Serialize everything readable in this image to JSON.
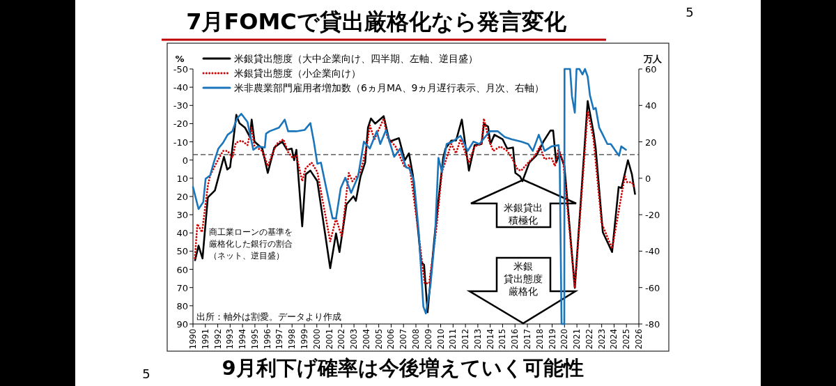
{
  "chart_data": {
    "type": "line",
    "title": "7月FOMCで貸出厳格化なら発言変化",
    "subtitle": "9月利下げ確率は今後増えていく可能性",
    "ylabel": "%",
    "y2label": "万人",
    "xlim": [
      1990,
      2026
    ],
    "xticks": [
      1990,
      1991,
      1992,
      1993,
      1994,
      1995,
      1996,
      1997,
      1998,
      1999,
      2000,
      2001,
      2002,
      2003,
      2004,
      2005,
      2006,
      2007,
      2008,
      2009,
      2010,
      2011,
      2012,
      2013,
      2014,
      2015,
      2016,
      2017,
      2018,
      2019,
      2020,
      2021,
      2022,
      2023,
      2024,
      2025,
      2026
    ],
    "ylim": [
      90,
      -50
    ],
    "yticks": [
      -50,
      -40,
      -30,
      -20,
      -10,
      0,
      10,
      20,
      30,
      40,
      50,
      60,
      70,
      80,
      90
    ],
    "y2lim": [
      -80,
      60
    ],
    "y2ticks": [
      -80,
      -60,
      -40,
      -20,
      0,
      20,
      40,
      60
    ],
    "legend": "top left",
    "series": [
      {
        "name": "米銀貸出態度（大中企業向け、四半期、左軸、逆目盛）",
        "color": "#000000",
        "line_style": "solid",
        "x": [
          1990.17,
          1990.45,
          1990.77,
          1991.2,
          1991.77,
          1992.5,
          1992.77,
          1993.0,
          1993.5,
          1993.75,
          1994.2,
          1994.6,
          1994.74,
          1994.97,
          1995.6,
          1996.04,
          1996.57,
          1997.2,
          1997.6,
          1997.97,
          1998.17,
          1998.35,
          1998.82,
          1999.1,
          1999.48,
          2000.04,
          2001.08,
          2001.55,
          2001.83,
          2002.4,
          2002.96,
          2003.15,
          2003.53,
          2003.9,
          2004.13,
          2004.37,
          2004.71,
          2005.4,
          2005.87,
          2006.63,
          2007.1,
          2007.44,
          2007.76,
          2008.42,
          2008.66,
          2008.94,
          2009.54,
          2010.2,
          2010.39,
          2010.86,
          2011.24,
          2011.71,
          2012.28,
          2012.74,
          2013.3,
          2013.49,
          2013.83,
          2014.02,
          2014.34,
          2015.0,
          2015.37,
          2015.84,
          2016.03,
          2016.41,
          2016.6,
          2017.16,
          2017.73,
          2018.29,
          2018.86,
          2019.08,
          2019.33,
          2019.61,
          2019.99,
          2020.83,
          2021.87,
          2022.34,
          2022.52,
          2023.09,
          2023.84,
          2024.37,
          2024.6,
          2025.12,
          2025.44,
          2025.69
        ],
        "values": [
          55,
          47,
          54,
          20.5,
          16.7,
          -1.8,
          5.2,
          3.9,
          -24.8,
          -20.3,
          -17.8,
          -12.6,
          -22.2,
          -10.1,
          -6.3,
          7.1,
          -6.9,
          -10.1,
          -5.6,
          -6.3,
          0.1,
          -5.6,
          36.4,
          7.8,
          5.8,
          11.6,
          59.4,
          40.3,
          50.5,
          24.3,
          19.9,
          22.4,
          9,
          1.4,
          -17.8,
          -22.8,
          -20,
          -24.1,
          -10.1,
          -12,
          0.1,
          -3.7,
          8.4,
          56.2,
          57.5,
          83.6,
          39.6,
          -1.2,
          -6.3,
          -10.7,
          -10.7,
          -22.2,
          5.8,
          -8.2,
          -8.8,
          -19.7,
          -18.4,
          -8.8,
          -13.9,
          -11.4,
          -6.3,
          -6.9,
          7.1,
          9,
          11.6,
          1.4,
          -2.5,
          -10.1,
          -16.2,
          -16.2,
          1.4,
          -3.7,
          3.3,
          70.2,
          -32.4,
          -15.2,
          -6.3,
          39.6,
          50.5,
          14.8,
          15.4,
          0.1,
          7.8,
          18.6
        ]
      },
      {
        "name": "米銀貸出態度（小企業向け）",
        "color": "#d00000",
        "line_style": "dotted",
        "x": [
          1990.15,
          1990.36,
          1990.73,
          1991.2,
          1991.39,
          1991.95,
          1992.43,
          1992.8,
          1993.18,
          1993.46,
          1993.93,
          1994.4,
          1994.72,
          1994.97,
          1995.6,
          1996.04,
          1996.74,
          1997.3,
          1997.68,
          1998.05,
          1998.35,
          1998.82,
          1999.1,
          1999.57,
          2000.04,
          2001.08,
          2001.55,
          2002.02,
          2002.4,
          2002.58,
          2002.87,
          2003.53,
          2004.0,
          2004.28,
          2004.65,
          2005.4,
          2005.69,
          2006.35,
          2007.1,
          2007.47,
          2008.23,
          2008.7,
          2009.07,
          2009.64,
          2010.1,
          2010.86,
          2011.24,
          2011.6,
          2012.28,
          2012.74,
          2013.3,
          2013.49,
          2013.87,
          2014.25,
          2014.81,
          2015.37,
          2015.75,
          2016.22,
          2016.5,
          2017.07,
          2017.63,
          2018.01,
          2018.39,
          2018.95,
          2019.23,
          2019.52,
          2019.9,
          2020.83,
          2021.87,
          2022.34,
          2022.99,
          2023.84,
          2024.6,
          2024.88,
          2025.06,
          2025.44,
          2025.63
        ],
        "values": [
          53.8,
          35.1,
          39.6,
          14.1,
          8.4,
          0.8,
          -5,
          -5,
          -1.2,
          -9.5,
          -10.7,
          -8.2,
          -17.8,
          -7.5,
          -5,
          3.3,
          -8.8,
          -11.4,
          -4.4,
          -1.2,
          -2.5,
          11.6,
          4.5,
          1.4,
          6.5,
          44.7,
          32,
          42.2,
          18,
          7.1,
          11.6,
          6.5,
          -6.3,
          -19,
          -11.4,
          -22.8,
          -12.6,
          -7.5,
          4,
          2.6,
          40.9,
          67.7,
          67.7,
          38.4,
          6.5,
          -8.8,
          -3.7,
          -11.4,
          1.4,
          -7.5,
          -8.8,
          -22.8,
          -11.4,
          -5,
          -7.5,
          -5,
          -1.2,
          5.2,
          5.8,
          1.4,
          -2.5,
          -7.5,
          -0.5,
          -1.2,
          3.3,
          -6.3,
          1.4,
          70.2,
          -26.7,
          -11.4,
          34.5,
          48.6,
          19.2,
          9,
          12.2,
          12.2,
          14.8
        ]
      },
      {
        "name": "米非農業部門雇用者増加数（6ヵ月MA、9ヵ月遅行表示、月次、右軸）",
        "color": "#1b75bb",
        "line_style": "solid",
        "axis": "y2",
        "x": [
          1990.0,
          1990.45,
          1990.83,
          1991.02,
          1991.39,
          1991.68,
          1992.05,
          1992.43,
          1992.8,
          1993.18,
          1993.55,
          1993.9,
          1994.4,
          1994.87,
          1995.25,
          1995.8,
          1995.9,
          1996.18,
          1996.94,
          1997.41,
          1997.68,
          1998.35,
          1999.01,
          1999.48,
          1999.76,
          2000.04,
          2000.33,
          2000.8,
          2001.27,
          2001.55,
          2001.93,
          2002.3,
          2002.77,
          2003.33,
          2003.8,
          2004.28,
          2004.84,
          2005.12,
          2005.59,
          2005.87,
          2006.25,
          2006.72,
          2007.19,
          2007.47,
          2007.85,
          2008.23,
          2008.6,
          2008.8,
          2009.17,
          2009.54,
          2009.82,
          2010.1,
          2010.48,
          2010.95,
          2011.6,
          2012.18,
          2012.64,
          2013.12,
          2013.58,
          2013.96,
          2014.62,
          2015.18,
          2015.75,
          2016.5,
          2017.07,
          2017.44,
          2017.92,
          2018.39,
          2018.95,
          2019.52,
          2019.61,
          2019.76,
          2019.98,
          2020.0,
          2020.45,
          2020.6,
          2020.83,
          2020.97,
          2021.2,
          2021.45,
          2021.65,
          2021.87,
          2022.05,
          2022.34,
          2022.52,
          2022.8,
          2023.09,
          2023.46,
          2023.74,
          2024.12,
          2024.4,
          2024.58,
          2024.96
        ],
        "values": [
          -4.8,
          -16.9,
          -13.1,
          -0.3,
          1.6,
          8.6,
          16.3,
          19.5,
          23.9,
          25.8,
          32.8,
          35.4,
          30.9,
          15.6,
          17.5,
          16.9,
          24.5,
          25.8,
          27.8,
          32.2,
          25.8,
          25.8,
          26.5,
          30.3,
          20.1,
          8,
          8.6,
          -6.7,
          -22,
          -22,
          -5.4,
          0.3,
          -8,
          1,
          20.1,
          16.3,
          25.8,
          18.8,
          26.5,
          20.1,
          11.8,
          16.3,
          6.1,
          5.4,
          -1.6,
          -29.6,
          -70.4,
          -74.2,
          -59,
          -32.2,
          11.2,
          3.5,
          18.8,
          20.1,
          23.3,
          15,
          20.1,
          18.8,
          22.6,
          25.8,
          25.8,
          22.6,
          21.4,
          20.1,
          18.8,
          15,
          23.9,
          15,
          17.5,
          18.2,
          8.6,
          -80,
          -80,
          60,
          60,
          45,
          36,
          60,
          60,
          57,
          60,
          55.8,
          45.6,
          37.9,
          38.6,
          27.8,
          23.9,
          18.8,
          18.8,
          15,
          12.4,
          17.5,
          15.6
        ]
      }
    ],
    "ref_lines": [
      {
        "axis": "y",
        "value": -3,
        "color": "#404040",
        "line_style": "dashed"
      }
    ],
    "annotations": [
      "商工業ローンの基準を厳格化した銀行の割合（ネット、逆目盛）",
      "米銀貸出積極化",
      "米銀貸出態度厳格化",
      "出所：軸外は割愛。データより作成",
      "5",
      "5"
    ]
  }
}
